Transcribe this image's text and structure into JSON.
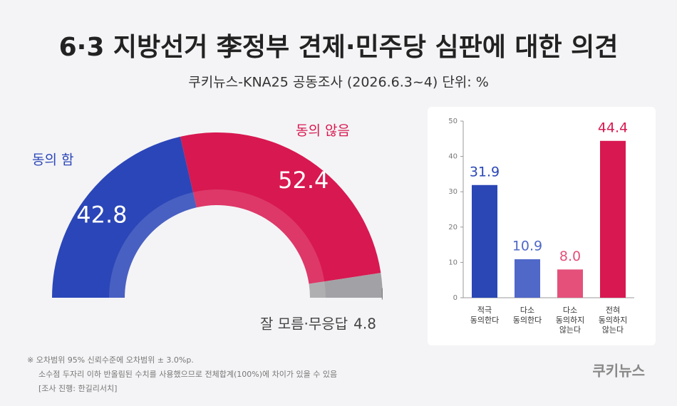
{
  "header": {
    "title": "6·3 지방선거 李정부 견제·민주당 심판에 대한 의견",
    "subtitle": "쿠키뉴스-KNA25 공동조사 (2026.6.3~4) 단위: %"
  },
  "chart_data": [
    {
      "type": "half-donut",
      "categories": [
        "동의 함",
        "동의 않음",
        "잘 모름·무응답"
      ],
      "values": [
        42.8,
        52.4,
        4.8
      ],
      "colors": [
        "#2b46b8",
        "#d81850",
        "#a2a2a6"
      ]
    },
    {
      "type": "bar",
      "categories": [
        "적극\n동의한다",
        "다소\n동의한다",
        "다소\n동의하지\n않는다",
        "전혀\n동의하지\n않는다"
      ],
      "values": [
        31.9,
        10.9,
        8.0,
        44.4
      ],
      "value_labels": [
        "31.9",
        "10.9",
        "8.0",
        "44.4"
      ],
      "colors": [
        "#2a47b5",
        "#5068c8",
        "#e4507a",
        "#d81850"
      ],
      "ylim": [
        0,
        50
      ],
      "yticks": [
        0,
        10,
        20,
        30,
        40,
        50
      ]
    }
  ],
  "notes": [
    "※ 오차범위 95% 신뢰수준에 오차범위 ± 3.0%p.",
    "소수점 두자리 이하 반올림된 수치를 사용했으므로 전체합계(100%)에 차이가 있을 수 있음",
    "[조사 진행: 한길리서치]"
  ],
  "brand": "쿠키뉴스"
}
